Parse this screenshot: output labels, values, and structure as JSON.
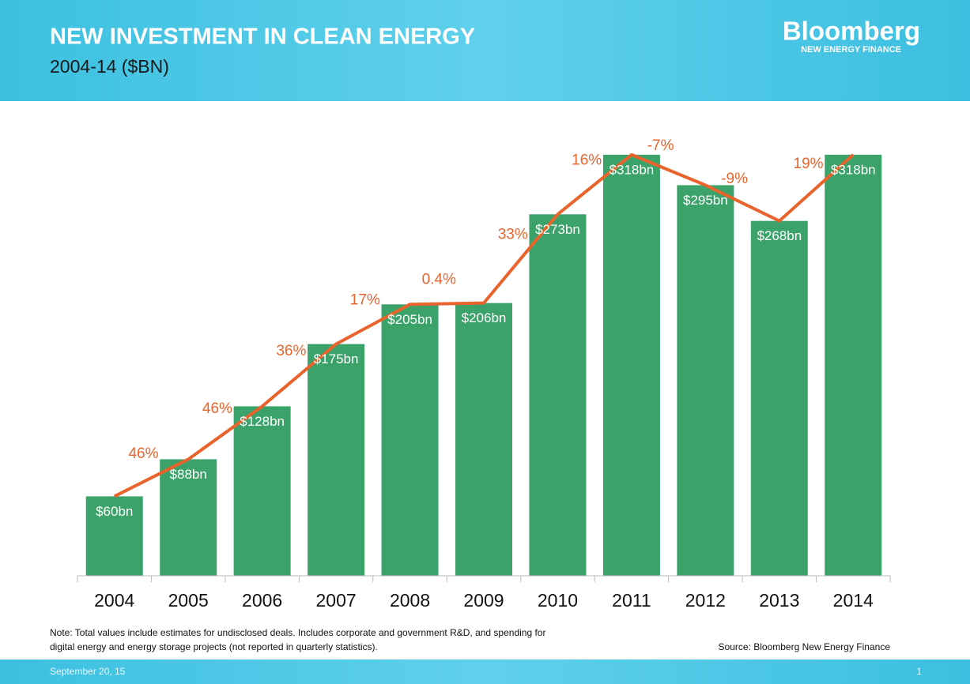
{
  "chart_data": {
    "type": "bar",
    "title": "NEW INVESTMENT IN CLEAN ENERGY",
    "subtitle": "2004-14 ($BN)",
    "categories": [
      "2004",
      "2005",
      "2006",
      "2007",
      "2008",
      "2009",
      "2010",
      "2011",
      "2012",
      "2013",
      "2014"
    ],
    "values": [
      60,
      88,
      128,
      175,
      205,
      206,
      273,
      318,
      295,
      268,
      318
    ],
    "value_labels": [
      "$60bn",
      "$88bn",
      "$128bn",
      "$175bn",
      "$205bn",
      "$206bn",
      "$273bn",
      "$318bn",
      "$295bn",
      "$268bn",
      "$318bn"
    ],
    "color": "#3ba36a",
    "line_color": "#e8642c",
    "growth": [
      null,
      46,
      46,
      36,
      17,
      0.4,
      33,
      16,
      -7,
      -9,
      19
    ],
    "growth_labels": [
      null,
      "46%",
      "46%",
      "36%",
      "17%",
      "0.4%",
      "33%",
      "16%",
      "-7%",
      "-9%",
      "19%"
    ],
    "ylim": [
      0,
      340
    ]
  },
  "logo": {
    "name": "Bloomberg",
    "tagline": "NEW ENERGY FINANCE"
  },
  "note": [
    "Note: Total values include estimates for undisclosed deals. Includes corporate and government R&D, and spending for",
    "digital energy and energy storage projects (not reported in quarterly statistics)."
  ],
  "source": "Source: Bloomberg New Energy Finance",
  "footer": {
    "date": "September 20, 15",
    "page": "1"
  }
}
